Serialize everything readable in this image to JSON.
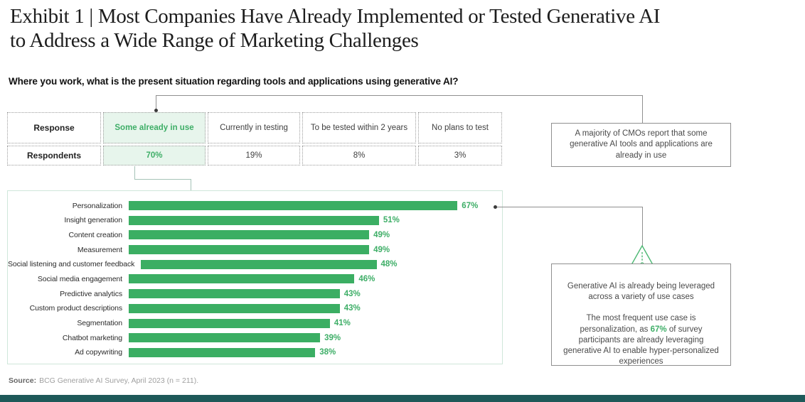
{
  "page": {
    "title_line1": "Exhibit 1 | Most Companies Have Already Implemented or Tested Generative AI",
    "title_line2": "to Address a Wide Range of Marketing Challenges",
    "question": "Where you work, what is the present situation regarding tools and applications using generative AI?",
    "source_label": "Source:",
    "source_text": "BCG Generative AI Survey, April 2023 (n = 211)."
  },
  "callouts": {
    "top": "A majority of CMOs report that some generative AI tools and applications are already in use",
    "bottom_para1": "Generative AI is already being leveraged across a variety of use cases",
    "bottom_para2_before": "The most frequent use case is personalization, as ",
    "bottom_para2_highlight": "67%",
    "bottom_para2_after": " of survey participants are already leveraging generative AI to enable hyper-personalized experiences"
  },
  "icons": {
    "warning_triangle": "triangle-exclamation-outline"
  },
  "colors": {
    "accent_green": "#3bae63",
    "green_text": "#3eae67",
    "highlight_bg": "#e7f5ec",
    "panel_border": "#cfe7da",
    "callout_border": "#8f8f8f",
    "connector_gray": "#8f8f8f",
    "connector_light": "#a5c3b7",
    "footer_bar": "#1e5959"
  },
  "chart_data": [
    {
      "type": "table",
      "row_headers": [
        "Response",
        "Respondents"
      ],
      "columns": [
        "Some already in use",
        "Currently in testing",
        "To be tested within 2 years",
        "No plans to test"
      ],
      "values": [
        "70%",
        "19%",
        "8%",
        "3%"
      ],
      "highlighted_column": "Some already in use"
    },
    {
      "type": "bar",
      "orientation": "horizontal",
      "categories": [
        "Personalization",
        "Insight generation",
        "Content creation",
        "Measurement",
        "Social listening and customer feedback",
        "Social media engagement",
        "Predictive analytics",
        "Custom product descriptions",
        "Segmentation",
        "Chatbot marketing",
        "Ad copywriting"
      ],
      "values": [
        67,
        51,
        49,
        49,
        48,
        46,
        43,
        43,
        41,
        39,
        38
      ],
      "unit": "%",
      "xlim": [
        0,
        70
      ],
      "bar_color": "#3bae63",
      "grid": false,
      "value_labels": "end-of-bar",
      "legend": "none"
    }
  ]
}
